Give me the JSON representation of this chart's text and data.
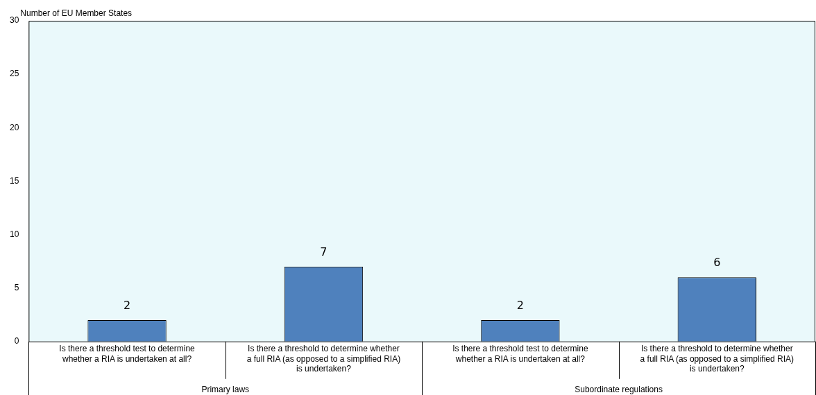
{
  "chart_data": {
    "type": "bar",
    "ylabel": "Number of EU Member States",
    "categories": [
      "Is there a threshold test to determine whether a RIA is undertaken at all?",
      "Is there a threshold to determine whether a full RIA (as opposed to a simplified RIA) is undertaken?",
      "Is there a threshold test to determine whether a RIA is undertaken at all?",
      "Is there a threshold to determine whether a full RIA (as opposed to a simplified RIA) is undertaken?"
    ],
    "values": [
      2,
      7,
      2,
      6
    ],
    "color": "#4f81bd",
    "ylim": [
      0,
      30
    ],
    "yticks": [
      0,
      5,
      10,
      15,
      20,
      25,
      30
    ],
    "grid": false,
    "legend": false,
    "data_labels": true,
    "annotations": [
      "Primary laws",
      "Subordinate regulations"
    ]
  }
}
